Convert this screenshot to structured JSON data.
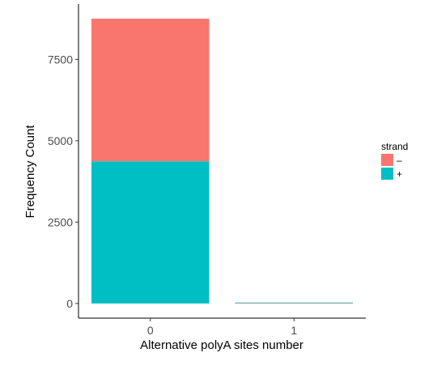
{
  "chart_data": {
    "type": "bar",
    "stacked": true,
    "categories": [
      "0",
      "1"
    ],
    "series": [
      {
        "name": "+",
        "values": [
          4370,
          20
        ],
        "color": "#00BFC4"
      },
      {
        "name": "–",
        "values": [
          4380,
          10
        ],
        "color": "#F8766D"
      }
    ],
    "stack_order_bottom_to_top": [
      "+",
      "–"
    ],
    "xlabel": "Alternative polyA sites number",
    "ylabel": "Frequency Count",
    "ylim": [
      -450,
      9200
    ],
    "yticks": [
      0,
      2500,
      5000,
      7500
    ],
    "ytick_labels": [
      "0",
      "2500",
      "5000",
      "7500"
    ],
    "grid": false,
    "legend": {
      "title": "strand",
      "placement": "right",
      "entries": [
        {
          "label": "–",
          "color": "#F8766D"
        },
        {
          "label": "+",
          "color": "#00BFC4"
        }
      ]
    }
  }
}
